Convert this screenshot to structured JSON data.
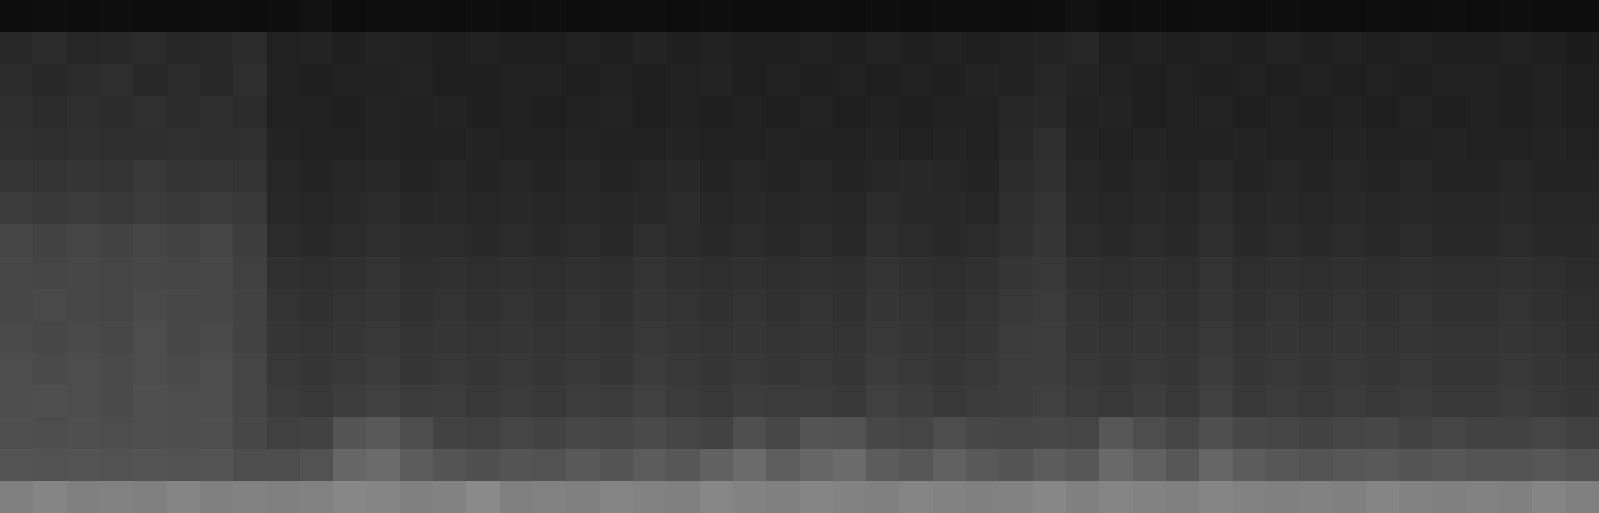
{
  "chart_data": {
    "type": "heatmap",
    "tick_labels": false,
    "zlim": [
      0,
      1
    ],
    "values": [
      [
        0.05,
        0.06,
        0.05,
        0.06,
        0.05,
        0.05,
        0.06,
        0.05,
        0.06,
        0.07,
        0.05,
        0.06,
        0.06,
        0.05,
        0.06,
        0.05,
        0.06,
        0.05,
        0.06,
        0.06,
        0.05,
        0.06,
        0.05,
        0.05,
        0.06,
        0.05,
        0.06,
        0.05,
        0.06,
        0.06,
        0.05,
        0.06,
        0.07,
        0.05,
        0.06,
        0.05,
        0.06,
        0.05,
        0.06,
        0.05,
        0.05,
        0.06,
        0.05,
        0.06,
        0.05,
        0.06,
        0.05,
        0.05
      ],
      [
        0.16,
        0.17,
        0.15,
        0.16,
        0.17,
        0.15,
        0.16,
        0.17,
        0.13,
        0.14,
        0.12,
        0.14,
        0.13,
        0.12,
        0.13,
        0.12,
        0.12,
        0.13,
        0.12,
        0.14,
        0.12,
        0.13,
        0.12,
        0.12,
        0.13,
        0.12,
        0.14,
        0.12,
        0.13,
        0.12,
        0.13,
        0.14,
        0.15,
        0.12,
        0.13,
        0.12,
        0.13,
        0.12,
        0.14,
        0.12,
        0.13,
        0.12,
        0.13,
        0.12,
        0.12,
        0.13,
        0.12,
        0.11
      ],
      [
        0.17,
        0.16,
        0.17,
        0.18,
        0.16,
        0.17,
        0.16,
        0.18,
        0.13,
        0.12,
        0.13,
        0.13,
        0.14,
        0.12,
        0.12,
        0.13,
        0.13,
        0.12,
        0.13,
        0.12,
        0.13,
        0.14,
        0.12,
        0.13,
        0.12,
        0.13,
        0.12,
        0.13,
        0.12,
        0.14,
        0.13,
        0.15,
        0.14,
        0.13,
        0.12,
        0.13,
        0.12,
        0.13,
        0.12,
        0.13,
        0.12,
        0.13,
        0.12,
        0.13,
        0.13,
        0.12,
        0.13,
        0.12
      ],
      [
        0.18,
        0.17,
        0.18,
        0.17,
        0.19,
        0.17,
        0.18,
        0.17,
        0.13,
        0.13,
        0.12,
        0.14,
        0.13,
        0.14,
        0.12,
        0.13,
        0.12,
        0.13,
        0.14,
        0.12,
        0.13,
        0.12,
        0.13,
        0.12,
        0.14,
        0.12,
        0.13,
        0.12,
        0.13,
        0.13,
        0.15,
        0.16,
        0.13,
        0.14,
        0.12,
        0.13,
        0.14,
        0.12,
        0.13,
        0.12,
        0.13,
        0.12,
        0.14,
        0.12,
        0.13,
        0.12,
        0.13,
        0.12
      ],
      [
        0.19,
        0.18,
        0.19,
        0.18,
        0.18,
        0.19,
        0.18,
        0.19,
        0.14,
        0.13,
        0.13,
        0.14,
        0.13,
        0.13,
        0.14,
        0.13,
        0.13,
        0.14,
        0.13,
        0.13,
        0.14,
        0.13,
        0.13,
        0.14,
        0.13,
        0.13,
        0.14,
        0.13,
        0.14,
        0.13,
        0.16,
        0.18,
        0.14,
        0.13,
        0.14,
        0.13,
        0.13,
        0.14,
        0.13,
        0.13,
        0.14,
        0.13,
        0.13,
        0.14,
        0.13,
        0.13,
        0.14,
        0.13
      ],
      [
        0.21,
        0.2,
        0.21,
        0.2,
        0.22,
        0.2,
        0.21,
        0.2,
        0.15,
        0.14,
        0.15,
        0.16,
        0.14,
        0.15,
        0.14,
        0.15,
        0.14,
        0.15,
        0.14,
        0.15,
        0.16,
        0.14,
        0.15,
        0.14,
        0.15,
        0.14,
        0.15,
        0.16,
        0.15,
        0.14,
        0.17,
        0.19,
        0.15,
        0.14,
        0.15,
        0.14,
        0.16,
        0.14,
        0.15,
        0.14,
        0.15,
        0.14,
        0.15,
        0.14,
        0.14,
        0.15,
        0.14,
        0.14
      ],
      [
        0.23,
        0.22,
        0.23,
        0.22,
        0.23,
        0.22,
        0.23,
        0.22,
        0.16,
        0.15,
        0.16,
        0.17,
        0.15,
        0.16,
        0.15,
        0.16,
        0.15,
        0.16,
        0.15,
        0.16,
        0.17,
        0.15,
        0.16,
        0.15,
        0.16,
        0.15,
        0.17,
        0.16,
        0.16,
        0.15,
        0.18,
        0.2,
        0.16,
        0.15,
        0.16,
        0.15,
        0.17,
        0.15,
        0.16,
        0.15,
        0.16,
        0.15,
        0.16,
        0.15,
        0.15,
        0.16,
        0.15,
        0.15
      ],
      [
        0.27,
        0.26,
        0.27,
        0.26,
        0.27,
        0.26,
        0.27,
        0.24,
        0.17,
        0.16,
        0.17,
        0.18,
        0.17,
        0.17,
        0.16,
        0.17,
        0.16,
        0.17,
        0.16,
        0.18,
        0.17,
        0.16,
        0.17,
        0.16,
        0.17,
        0.16,
        0.18,
        0.17,
        0.16,
        0.17,
        0.19,
        0.21,
        0.17,
        0.16,
        0.17,
        0.16,
        0.18,
        0.16,
        0.17,
        0.16,
        0.17,
        0.16,
        0.17,
        0.16,
        0.16,
        0.17,
        0.16,
        0.16
      ],
      [
        0.28,
        0.27,
        0.28,
        0.27,
        0.28,
        0.27,
        0.28,
        0.25,
        0.19,
        0.18,
        0.19,
        0.2,
        0.18,
        0.19,
        0.18,
        0.19,
        0.18,
        0.19,
        0.18,
        0.2,
        0.19,
        0.18,
        0.19,
        0.18,
        0.19,
        0.18,
        0.2,
        0.19,
        0.18,
        0.19,
        0.21,
        0.22,
        0.19,
        0.18,
        0.19,
        0.18,
        0.2,
        0.18,
        0.19,
        0.18,
        0.19,
        0.18,
        0.19,
        0.18,
        0.18,
        0.19,
        0.18,
        0.17
      ],
      [
        0.28,
        0.29,
        0.28,
        0.27,
        0.29,
        0.28,
        0.28,
        0.26,
        0.2,
        0.19,
        0.2,
        0.21,
        0.19,
        0.2,
        0.19,
        0.2,
        0.19,
        0.2,
        0.19,
        0.21,
        0.2,
        0.19,
        0.2,
        0.19,
        0.2,
        0.19,
        0.21,
        0.2,
        0.19,
        0.2,
        0.22,
        0.23,
        0.2,
        0.19,
        0.2,
        0.19,
        0.21,
        0.19,
        0.2,
        0.19,
        0.2,
        0.19,
        0.2,
        0.19,
        0.19,
        0.2,
        0.19,
        0.18
      ],
      [
        0.29,
        0.28,
        0.29,
        0.28,
        0.3,
        0.28,
        0.29,
        0.26,
        0.21,
        0.2,
        0.21,
        0.22,
        0.2,
        0.21,
        0.2,
        0.21,
        0.2,
        0.21,
        0.2,
        0.22,
        0.21,
        0.2,
        0.21,
        0.2,
        0.21,
        0.2,
        0.22,
        0.21,
        0.2,
        0.21,
        0.23,
        0.24,
        0.21,
        0.2,
        0.21,
        0.2,
        0.22,
        0.2,
        0.21,
        0.2,
        0.21,
        0.2,
        0.21,
        0.2,
        0.2,
        0.21,
        0.2,
        0.19
      ],
      [
        0.3,
        0.29,
        0.3,
        0.29,
        0.3,
        0.29,
        0.3,
        0.27,
        0.22,
        0.21,
        0.22,
        0.23,
        0.21,
        0.22,
        0.21,
        0.22,
        0.21,
        0.22,
        0.21,
        0.23,
        0.22,
        0.21,
        0.22,
        0.21,
        0.22,
        0.21,
        0.23,
        0.22,
        0.21,
        0.22,
        0.24,
        0.24,
        0.22,
        0.21,
        0.22,
        0.21,
        0.23,
        0.21,
        0.22,
        0.21,
        0.22,
        0.21,
        0.22,
        0.21,
        0.21,
        0.22,
        0.21,
        0.2
      ],
      [
        0.3,
        0.31,
        0.3,
        0.29,
        0.31,
        0.3,
        0.3,
        0.27,
        0.23,
        0.22,
        0.24,
        0.25,
        0.23,
        0.24,
        0.22,
        0.23,
        0.22,
        0.24,
        0.23,
        0.25,
        0.23,
        0.22,
        0.24,
        0.23,
        0.23,
        0.22,
        0.25,
        0.24,
        0.22,
        0.23,
        0.24,
        0.25,
        0.23,
        0.22,
        0.24,
        0.22,
        0.25,
        0.22,
        0.23,
        0.22,
        0.23,
        0.22,
        0.23,
        0.22,
        0.22,
        0.23,
        0.22,
        0.21
      ],
      [
        0.31,
        0.3,
        0.31,
        0.3,
        0.31,
        0.3,
        0.31,
        0.28,
        0.25,
        0.26,
        0.33,
        0.35,
        0.3,
        0.26,
        0.25,
        0.27,
        0.26,
        0.28,
        0.27,
        0.29,
        0.27,
        0.26,
        0.31,
        0.28,
        0.33,
        0.32,
        0.28,
        0.27,
        0.3,
        0.28,
        0.27,
        0.28,
        0.27,
        0.34,
        0.3,
        0.27,
        0.31,
        0.28,
        0.27,
        0.26,
        0.27,
        0.28,
        0.26,
        0.27,
        0.26,
        0.26,
        0.27,
        0.25
      ],
      [
        0.33,
        0.32,
        0.33,
        0.32,
        0.33,
        0.32,
        0.33,
        0.3,
        0.3,
        0.32,
        0.4,
        0.42,
        0.36,
        0.33,
        0.31,
        0.33,
        0.32,
        0.35,
        0.33,
        0.36,
        0.34,
        0.38,
        0.42,
        0.37,
        0.4,
        0.42,
        0.36,
        0.34,
        0.38,
        0.35,
        0.33,
        0.36,
        0.34,
        0.41,
        0.38,
        0.34,
        0.4,
        0.36,
        0.34,
        0.33,
        0.34,
        0.35,
        0.33,
        0.34,
        0.33,
        0.33,
        0.34,
        0.32
      ],
      [
        0.5,
        0.52,
        0.5,
        0.51,
        0.5,
        0.52,
        0.5,
        0.51,
        0.5,
        0.51,
        0.53,
        0.52,
        0.5,
        0.51,
        0.54,
        0.5,
        0.51,
        0.5,
        0.52,
        0.51,
        0.5,
        0.53,
        0.51,
        0.5,
        0.52,
        0.51,
        0.5,
        0.52,
        0.51,
        0.5,
        0.51,
        0.53,
        0.5,
        0.52,
        0.51,
        0.5,
        0.52,
        0.51,
        0.5,
        0.51,
        0.5,
        0.52,
        0.51,
        0.5,
        0.51,
        0.5,
        0.52,
        0.5
      ]
    ]
  }
}
